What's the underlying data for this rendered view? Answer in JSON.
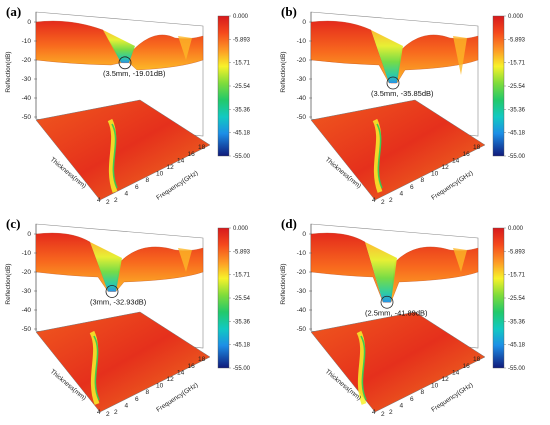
{
  "chart_data": [
    {
      "type": "surface3d",
      "panel": "(a)",
      "zlabel": "Reflection(dB)",
      "ylabel": "Thickness(mm)",
      "xlabel": "Frequency(GHz)",
      "zticks": [
        "0",
        "-10",
        "-20",
        "-30",
        "-40",
        "-50"
      ],
      "yticks": [
        "2",
        "4"
      ],
      "xticks": [
        "2",
        "4",
        "6",
        "8",
        "10",
        "12",
        "14",
        "16",
        "18"
      ],
      "colorbar": [
        "0.000",
        "-5.893",
        "-15.71",
        "-25.54",
        "-35.36",
        "-45.18",
        "-55.00"
      ],
      "min_point": {
        "thickness_mm": 3.5,
        "reflection_db": -19.01
      },
      "annotation": "(3.5mm, -19.01dB)"
    },
    {
      "type": "surface3d",
      "panel": "(b)",
      "zlabel": "Reflection(dB)",
      "ylabel": "Thickness(mm)",
      "xlabel": "Frequency(GHz)",
      "zticks": [
        "0",
        "-10",
        "-20",
        "-30",
        "-40",
        "-50"
      ],
      "yticks": [
        "2",
        "4"
      ],
      "xticks": [
        "2",
        "4",
        "6",
        "8",
        "10",
        "12",
        "14",
        "16",
        "18"
      ],
      "colorbar": [
        "0.000",
        "-5.893",
        "-15.71",
        "-25.54",
        "-35.36",
        "-45.18",
        "-55.00"
      ],
      "min_point": {
        "thickness_mm": 3.5,
        "reflection_db": -35.85
      },
      "annotation": "(3.5mm, -35.85dB)"
    },
    {
      "type": "surface3d",
      "panel": "(c)",
      "zlabel": "Reflection(dB)",
      "ylabel": "Thickness(mm)",
      "xlabel": "Frequency(GHz)",
      "zticks": [
        "0",
        "-10",
        "-20",
        "-30",
        "-40",
        "-50"
      ],
      "yticks": [
        "2",
        "4"
      ],
      "xticks": [
        "2",
        "4",
        "6",
        "8",
        "10",
        "12",
        "14",
        "16",
        "18"
      ],
      "colorbar": [
        "0.000",
        "-5.893",
        "-15.71",
        "-25.54",
        "-35.36",
        "-45.18",
        "-55.00"
      ],
      "min_point": {
        "thickness_mm": 3,
        "reflection_db": -32.93
      },
      "annotation": "(3mm, -32.93dB)"
    },
    {
      "type": "surface3d",
      "panel": "(d)",
      "zlabel": "Reflection(dB)",
      "ylabel": "Thickness(mm)",
      "xlabel": "Frequency(GHz)",
      "zticks": [
        "0",
        "-10",
        "-20",
        "-30",
        "-40",
        "-50"
      ],
      "yticks": [
        "2",
        "4"
      ],
      "xticks": [
        "2",
        "4",
        "6",
        "8",
        "10",
        "12",
        "14",
        "16",
        "18"
      ],
      "colorbar": [
        "0.000",
        "-5.893",
        "-15.71",
        "-25.54",
        "-35.36",
        "-45.18",
        "-55.00"
      ],
      "min_point": {
        "thickness_mm": 2.5,
        "reflection_db": -41.89
      },
      "annotation": "(2.5mm, -41.89dB)"
    }
  ],
  "colors": {
    "scale": [
      "#d7191c",
      "#fa6a1e",
      "#fdb827",
      "#f7f22a",
      "#a6e43a",
      "#2ecc57",
      "#12c9c2",
      "#1d8ee6",
      "#1a2fb0",
      "#101a7a"
    ],
    "wall": "#ffffff",
    "axis": "#444444"
  }
}
